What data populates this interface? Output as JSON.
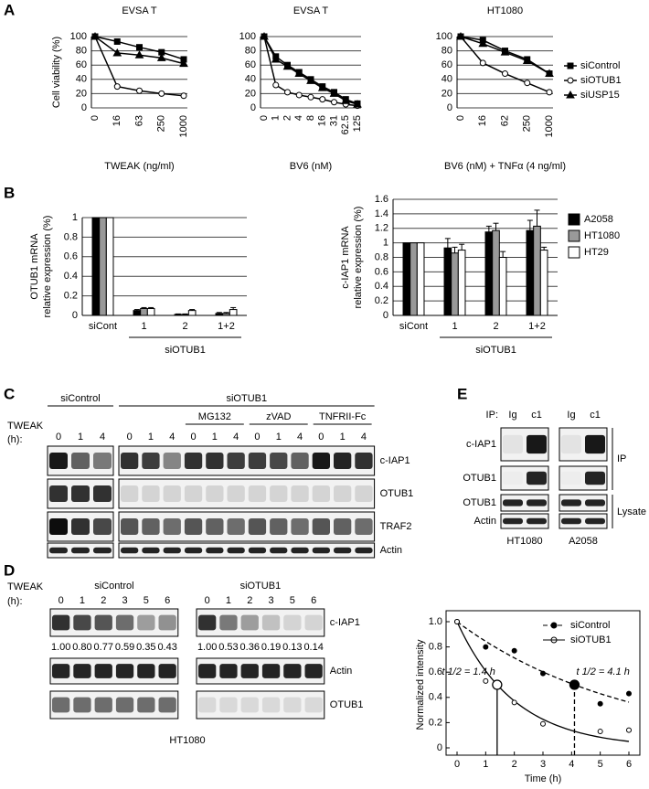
{
  "panel_labels": [
    "A",
    "B",
    "C",
    "D",
    "E"
  ],
  "chart_data": [
    {
      "type": "line",
      "title": "EVSA T",
      "ylabel": "Cell viability (%)",
      "xlabel": "TWEAK (ng/ml)",
      "categories": [
        "0",
        "16",
        "63",
        "250",
        "1000"
      ],
      "ylim": [
        0,
        100
      ],
      "yticks": [
        0,
        20,
        40,
        60,
        80,
        100
      ],
      "grid": true,
      "series": [
        {
          "marker": "square",
          "color": "#000000",
          "values": [
            100,
            93,
            85,
            78,
            68
          ]
        },
        {
          "marker": "open-circle",
          "color": "#000000",
          "values": [
            100,
            30,
            24,
            20,
            17
          ]
        },
        {
          "marker": "triangle",
          "color": "#000000",
          "values": [
            100,
            77,
            74,
            70,
            62
          ]
        }
      ]
    },
    {
      "type": "line",
      "title": "EVSA T",
      "xlabel": "BV6 (nM)",
      "categories": [
        "0",
        "1",
        "2",
        "4",
        "8",
        "16",
        "31",
        "62.5",
        "125"
      ],
      "ylim": [
        0,
        100
      ],
      "yticks": [
        0,
        20,
        40,
        60,
        80,
        100
      ],
      "grid": true,
      "series": [
        {
          "marker": "square",
          "color": "#000000",
          "values": [
            100,
            72,
            60,
            50,
            40,
            30,
            22,
            12,
            6
          ]
        },
        {
          "marker": "open-circle",
          "color": "#000000",
          "values": [
            100,
            32,
            22,
            18,
            15,
            12,
            8,
            5,
            3
          ]
        },
        {
          "marker": "triangle",
          "color": "#000000",
          "values": [
            100,
            68,
            58,
            48,
            38,
            28,
            20,
            10,
            5
          ]
        }
      ]
    },
    {
      "type": "line",
      "title": "HT1080",
      "xlabel": "BV6 (nM) + TNFα (4 ng/ml)",
      "categories": [
        "0",
        "16",
        "62",
        "250",
        "1000"
      ],
      "ylim": [
        0,
        100
      ],
      "yticks": [
        0,
        20,
        40,
        60,
        80,
        100
      ],
      "grid": true,
      "series": [
        {
          "name": "siControl",
          "marker": "square",
          "color": "#000000",
          "values": [
            100,
            95,
            80,
            68,
            48
          ]
        },
        {
          "name": "siOTUB1",
          "marker": "open-circle",
          "color": "#000000",
          "values": [
            100,
            63,
            48,
            35,
            22
          ]
        },
        {
          "name": "siUSP15",
          "marker": "triangle",
          "color": "#000000",
          "values": [
            100,
            90,
            78,
            66,
            48
          ]
        }
      ]
    },
    {
      "type": "bar",
      "ylabel_lines": [
        "OTUB1 mRNA",
        "relative expression (%)"
      ],
      "categories": [
        "siCont",
        "1",
        "2",
        "1+2"
      ],
      "group_label": "siOTUB1",
      "ylim": [
        0,
        1
      ],
      "yticks": [
        0,
        0.2,
        0.4,
        0.6,
        0.8,
        1
      ],
      "grid": true,
      "series": [
        {
          "color": "#000000",
          "values": [
            1,
            0.05,
            0.01,
            0.02
          ],
          "errors": [
            0,
            0.01,
            0.005,
            0.01
          ]
        },
        {
          "color": "#999999",
          "values": [
            1,
            0.07,
            0.01,
            0.02
          ],
          "errors": [
            0,
            0.01,
            0.005,
            0.01
          ]
        },
        {
          "color": "#ffffff",
          "values": [
            1,
            0.07,
            0.05,
            0.06
          ],
          "errors": [
            0,
            0.01,
            0.01,
            0.02
          ]
        }
      ]
    },
    {
      "type": "bar",
      "ylabel_lines": [
        "c-IAP1 mRNA",
        "relative expression (%)"
      ],
      "categories": [
        "siCont",
        "1",
        "2",
        "1+2"
      ],
      "group_label": "siOTUB1",
      "ylim": [
        0,
        1.6
      ],
      "yticks": [
        0,
        0.2,
        0.4,
        0.6,
        0.8,
        1,
        1.2,
        1.4,
        1.6
      ],
      "grid": true,
      "series": [
        {
          "name": "A2058",
          "color": "#000000",
          "values": [
            1,
            0.93,
            1.15,
            1.17
          ],
          "errors": [
            0,
            0.13,
            0.08,
            0.14
          ]
        },
        {
          "name": "HT1080",
          "color": "#999999",
          "values": [
            1,
            0.86,
            1.17,
            1.23
          ],
          "errors": [
            0,
            0.08,
            0.1,
            0.22
          ]
        },
        {
          "name": "HT29",
          "color": "#ffffff",
          "values": [
            1,
            0.9,
            0.8,
            0.9
          ],
          "errors": [
            0,
            0.08,
            0.08,
            0.04
          ]
        }
      ]
    },
    {
      "type": "scatter",
      "xlabel": "Time (h)",
      "ylabel": "Normalized intensity",
      "xlim": [
        0,
        6
      ],
      "xticks": [
        0,
        1,
        2,
        3,
        4,
        5,
        6
      ],
      "ylim": [
        0,
        1
      ],
      "yticks": [
        0,
        0.2,
        0.4,
        0.6,
        0.8,
        {
          "value": 1,
          "label": "1.0"
        }
      ],
      "grid": false,
      "series": [
        {
          "name": "siControl",
          "marker": "filled",
          "dash": true,
          "color": "#000000",
          "x": [
            0,
            1,
            2,
            3,
            5,
            6
          ],
          "values": [
            1,
            0.8,
            0.77,
            0.59,
            0.35,
            0.43
          ],
          "half_life": 4.1,
          "annotation": "t 1/2 = 4.1 h"
        },
        {
          "name": "siOTUB1",
          "marker": "open",
          "dash": false,
          "color": "#000000",
          "x": [
            0,
            1,
            2,
            3,
            5,
            6
          ],
          "values": [
            1,
            0.53,
            0.36,
            0.19,
            0.13,
            0.14
          ],
          "half_life": 1.4,
          "annotation": "t 1/2 = 1.4 h"
        }
      ]
    }
  ],
  "blot_C": {
    "treatment": "TWEAK",
    "unit": "(h):",
    "group_left": "siControl",
    "group_right": "siOTUB1",
    "subgroups": [
      "MG132",
      "zVAD",
      "TNFRII-Fc"
    ],
    "lanes_left": [
      "0",
      "1",
      "4"
    ],
    "lanes_right": [
      "0",
      "1",
      "4",
      "0",
      "1",
      "4",
      "0",
      "1",
      "4",
      "0",
      "1",
      "4"
    ],
    "rows": [
      "c-IAP1",
      "OTUB1",
      "TRAF2",
      "Actin"
    ]
  },
  "blot_D": {
    "treatment": "TWEAK",
    "unit": "(h):",
    "group_left": "siControl",
    "group_right": "siOTUB1",
    "lanes_left": [
      "0",
      "1",
      "2",
      "3",
      "5",
      "6"
    ],
    "lanes_right": [
      "0",
      "1",
      "2",
      "3",
      "5",
      "6"
    ],
    "rows": [
      "c-IAP1",
      "Actin",
      "OTUB1"
    ],
    "quant_left": [
      "1.00",
      "0.80",
      "0.77",
      "0.59",
      "0.35",
      "0.43"
    ],
    "quant_right": [
      "1.00",
      "0.53",
      "0.36",
      "0.19",
      "0.13",
      "0.14"
    ],
    "cell_line": "HT1080"
  },
  "blot_E": {
    "ip_label": "IP:",
    "lanes": [
      "Ig",
      "c1",
      "Ig",
      "c1"
    ],
    "rows": [
      "c-IAP1",
      "OTUB1",
      "OTUB1",
      "Actin"
    ],
    "brackets": [
      "IP",
      "Lysate"
    ],
    "cell_lines": [
      "HT1080",
      "A2058"
    ]
  }
}
